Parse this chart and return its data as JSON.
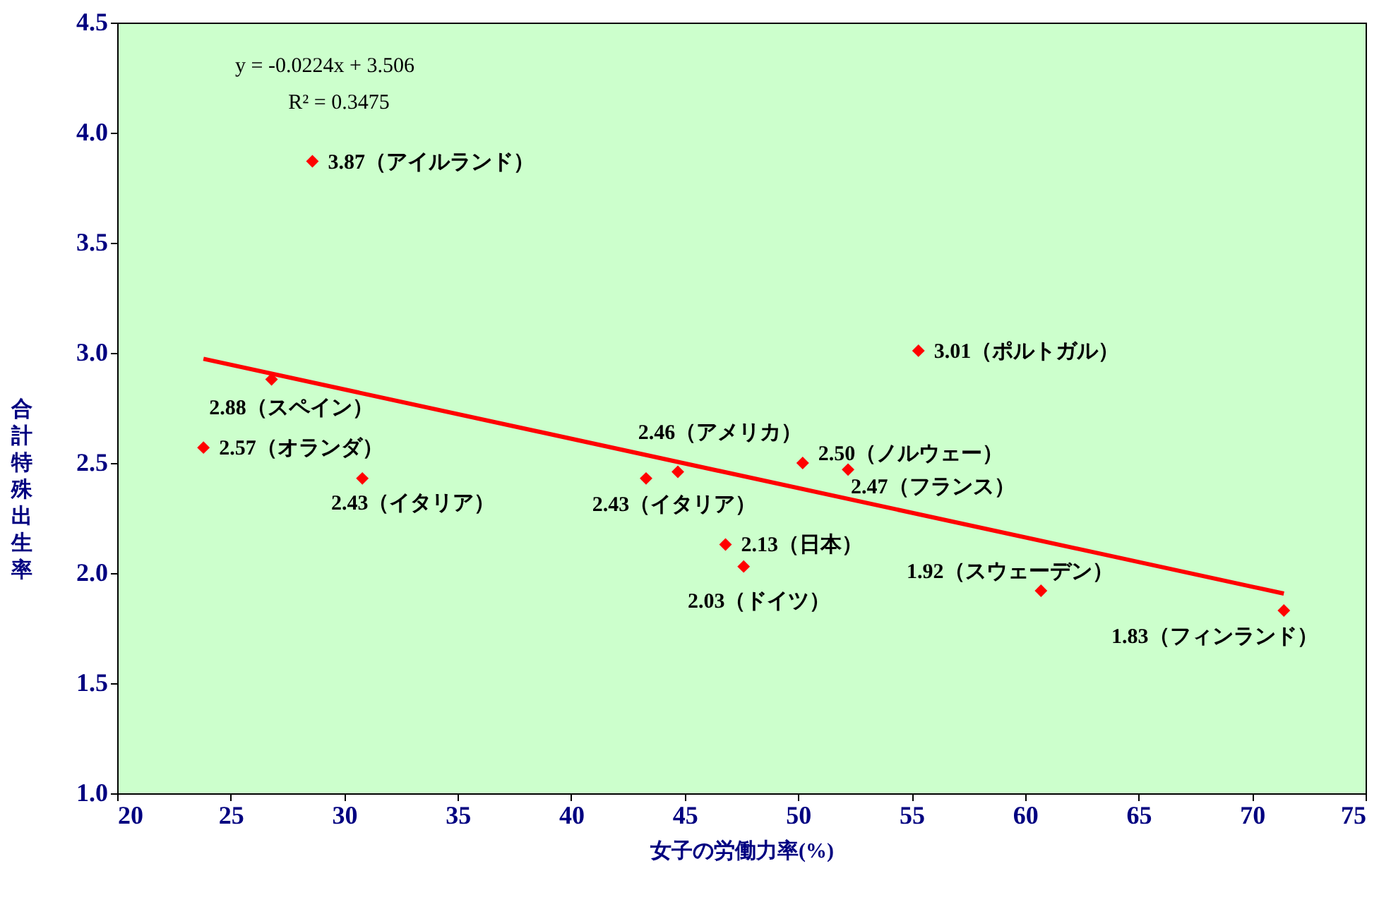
{
  "chart_data": {
    "type": "scatter",
    "xlabel": "女子の労働力率(%)",
    "ylabel": "合計特殊出生率",
    "grid": false,
    "xlim": [
      20,
      75
    ],
    "xticks": [
      20,
      25,
      30,
      35,
      40,
      45,
      50,
      55,
      60,
      65,
      70,
      75
    ],
    "ylim": [
      1,
      4.5
    ],
    "yticks": [
      {
        "value": 1,
        "label": "1.0"
      },
      {
        "value": 1.5,
        "label": "1.5"
      },
      {
        "value": 2,
        "label": "2.0"
      },
      {
        "value": 2.5,
        "label": "2.5"
      },
      {
        "value": 3,
        "label": "3.0"
      },
      {
        "value": 3.5,
        "label": "3.5"
      },
      {
        "value": 4,
        "label": "4.0"
      },
      {
        "value": 4.5,
        "label": "4.5"
      }
    ],
    "annotations": [
      "y = -0.0224x + 3.506",
      "R² = 0.3475"
    ],
    "series": [
      {
        "color": "#ff0000",
        "marker": "diamond",
        "x": [
          28.6,
          26.8,
          23.8,
          30.8,
          43.3,
          44.7,
          50.2,
          52.2,
          55.3,
          46.8,
          47.6,
          60.7,
          71.4
        ],
        "values": [
          3.87,
          2.88,
          2.57,
          2.43,
          2.43,
          2.46,
          2.5,
          2.47,
          3.01,
          2.13,
          2.03,
          1.92,
          1.83
        ],
        "value_labels": [
          "3.87（アイルランド）",
          "2.88（スペイン）",
          "2.57（オランダ）",
          "2.43（イタリア）",
          "2.43（イタリア）",
          "2.46（アメリカ）",
          "2.50（ノルウェー）",
          "2.47（フランス）",
          "3.01（ポルトガル）",
          "2.13（日本）",
          "2.03（ドイツ）",
          "1.92（スウェーデン）",
          "1.83（フィンランド）"
        ]
      },
      {
        "type": "line",
        "color": "#ff0000",
        "x": [
          23.8,
          71.4
        ],
        "values": [
          2.973,
          1.907
        ]
      }
    ]
  }
}
